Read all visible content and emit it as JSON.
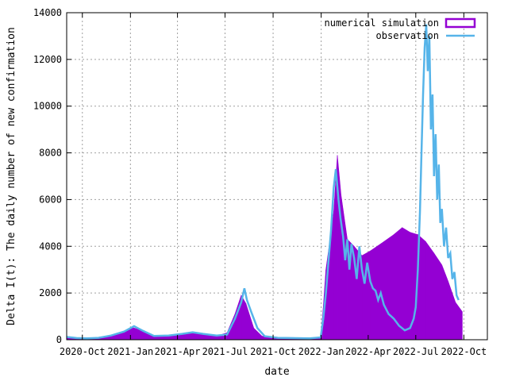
{
  "chart_data": {
    "type": "bar",
    "xlabel": "date",
    "ylabel": "Delta I(t): The daily number of new confirmation",
    "x_type": "date",
    "xlim": [
      "2020-09-01",
      "2022-11-15"
    ],
    "ylim": [
      0,
      14000
    ],
    "grid": true,
    "legend_position": "top-right",
    "x_ticks": [
      {
        "date": "2020-10-01",
        "label": "2020-Oct"
      },
      {
        "date": "2021-01-01",
        "label": "2021-Jan"
      },
      {
        "date": "2021-04-01",
        "label": "2021-Apr"
      },
      {
        "date": "2021-07-01",
        "label": "2021-Jul"
      },
      {
        "date": "2021-10-01",
        "label": "2021-Oct"
      },
      {
        "date": "2022-01-01",
        "label": "2022-Jan"
      },
      {
        "date": "2022-04-01",
        "label": "2022-Apr"
      },
      {
        "date": "2022-07-01",
        "label": "2022-Jul"
      },
      {
        "date": "2022-10-01",
        "label": "2022-Oct"
      }
    ],
    "y_ticks": [
      0,
      2000,
      4000,
      6000,
      8000,
      10000,
      12000,
      14000
    ],
    "series": [
      {
        "name": "numerical simulation",
        "style": "bars",
        "color": "#9400d3",
        "points": [
          [
            "2020-09-01",
            80
          ],
          [
            "2020-10-15",
            60
          ],
          [
            "2020-11-15",
            150
          ],
          [
            "2020-12-15",
            300
          ],
          [
            "2021-01-05",
            520
          ],
          [
            "2021-01-20",
            420
          ],
          [
            "2021-02-15",
            180
          ],
          [
            "2021-03-15",
            170
          ],
          [
            "2021-04-15",
            240
          ],
          [
            "2021-05-05",
            300
          ],
          [
            "2021-05-25",
            220
          ],
          [
            "2021-06-15",
            160
          ],
          [
            "2021-07-05",
            300
          ],
          [
            "2021-07-20",
            1100
          ],
          [
            "2021-08-01",
            1900
          ],
          [
            "2021-08-10",
            1550
          ],
          [
            "2021-08-25",
            500
          ],
          [
            "2021-09-10",
            150
          ],
          [
            "2021-10-15",
            100
          ],
          [
            "2021-12-15",
            80
          ],
          [
            "2021-12-31",
            100
          ],
          [
            "2022-01-05",
            1400
          ],
          [
            "2022-01-10",
            3000
          ],
          [
            "2022-01-18",
            4300
          ],
          [
            "2022-01-25",
            5500
          ],
          [
            "2022-02-01",
            7900
          ],
          [
            "2022-02-08",
            6200
          ],
          [
            "2022-02-20",
            4300
          ],
          [
            "2022-03-05",
            4000
          ],
          [
            "2022-03-20",
            3600
          ],
          [
            "2022-04-05",
            3800
          ],
          [
            "2022-05-01",
            4200
          ],
          [
            "2022-05-20",
            4500
          ],
          [
            "2022-06-05",
            4800
          ],
          [
            "2022-06-20",
            4600
          ],
          [
            "2022-07-05",
            4500
          ],
          [
            "2022-07-20",
            4200
          ],
          [
            "2022-08-05",
            3700
          ],
          [
            "2022-08-20",
            3200
          ],
          [
            "2022-09-01",
            2500
          ],
          [
            "2022-09-15",
            1600
          ],
          [
            "2022-09-28",
            1200
          ]
        ]
      },
      {
        "name": "observation",
        "style": "line",
        "color": "#56b4e9",
        "points": [
          [
            "2020-09-01",
            120
          ],
          [
            "2020-09-20",
            70
          ],
          [
            "2020-10-10",
            60
          ],
          [
            "2020-11-01",
            80
          ],
          [
            "2020-11-25",
            180
          ],
          [
            "2020-12-20",
            350
          ],
          [
            "2021-01-08",
            580
          ],
          [
            "2021-01-25",
            380
          ],
          [
            "2021-02-15",
            160
          ],
          [
            "2021-03-15",
            180
          ],
          [
            "2021-04-10",
            250
          ],
          [
            "2021-04-30",
            320
          ],
          [
            "2021-05-20",
            250
          ],
          [
            "2021-06-15",
            180
          ],
          [
            "2021-07-05",
            220
          ],
          [
            "2021-07-20",
            900
          ],
          [
            "2021-08-01",
            1600
          ],
          [
            "2021-08-07",
            2200
          ],
          [
            "2021-08-12",
            1700
          ],
          [
            "2021-08-20",
            1200
          ],
          [
            "2021-09-01",
            500
          ],
          [
            "2021-09-15",
            150
          ],
          [
            "2021-10-10",
            80
          ],
          [
            "2021-12-10",
            60
          ],
          [
            "2021-12-31",
            100
          ],
          [
            "2022-01-05",
            900
          ],
          [
            "2022-01-10",
            2000
          ],
          [
            "2022-01-15",
            3400
          ],
          [
            "2022-01-20",
            4700
          ],
          [
            "2022-01-25",
            6500
          ],
          [
            "2022-01-29",
            7300
          ],
          [
            "2022-02-03",
            6000
          ],
          [
            "2022-02-07",
            5200
          ],
          [
            "2022-02-12",
            4400
          ],
          [
            "2022-02-16",
            3400
          ],
          [
            "2022-02-20",
            4300
          ],
          [
            "2022-02-24",
            3000
          ],
          [
            "2022-02-28",
            4100
          ],
          [
            "2022-03-05",
            3500
          ],
          [
            "2022-03-10",
            2600
          ],
          [
            "2022-03-15",
            4000
          ],
          [
            "2022-03-20",
            3000
          ],
          [
            "2022-03-25",
            2400
          ],
          [
            "2022-03-30",
            3300
          ],
          [
            "2022-04-05",
            2500
          ],
          [
            "2022-04-10",
            2200
          ],
          [
            "2022-04-15",
            2100
          ],
          [
            "2022-04-20",
            1700
          ],
          [
            "2022-04-25",
            2000
          ],
          [
            "2022-05-01",
            1500
          ],
          [
            "2022-05-10",
            1100
          ],
          [
            "2022-05-20",
            900
          ],
          [
            "2022-05-30",
            600
          ],
          [
            "2022-06-10",
            400
          ],
          [
            "2022-06-20",
            500
          ],
          [
            "2022-06-27",
            900
          ],
          [
            "2022-07-01",
            1400
          ],
          [
            "2022-07-05",
            3000
          ],
          [
            "2022-07-09",
            5500
          ],
          [
            "2022-07-12",
            8000
          ],
          [
            "2022-07-15",
            10500
          ],
          [
            "2022-07-18",
            12500
          ],
          [
            "2022-07-21",
            13500
          ],
          [
            "2022-07-24",
            11500
          ],
          [
            "2022-07-27",
            13000
          ],
          [
            "2022-07-30",
            9000
          ],
          [
            "2022-08-02",
            10500
          ],
          [
            "2022-08-05",
            7000
          ],
          [
            "2022-08-08",
            8800
          ],
          [
            "2022-08-11",
            6000
          ],
          [
            "2022-08-14",
            7500
          ],
          [
            "2022-08-17",
            5000
          ],
          [
            "2022-08-20",
            5600
          ],
          [
            "2022-08-24",
            4000
          ],
          [
            "2022-08-28",
            4800
          ],
          [
            "2022-09-01",
            3500
          ],
          [
            "2022-09-05",
            3700
          ],
          [
            "2022-09-09",
            2600
          ],
          [
            "2022-09-13",
            2900
          ],
          [
            "2022-09-17",
            1900
          ],
          [
            "2022-09-21",
            1700
          ]
        ]
      }
    ]
  }
}
